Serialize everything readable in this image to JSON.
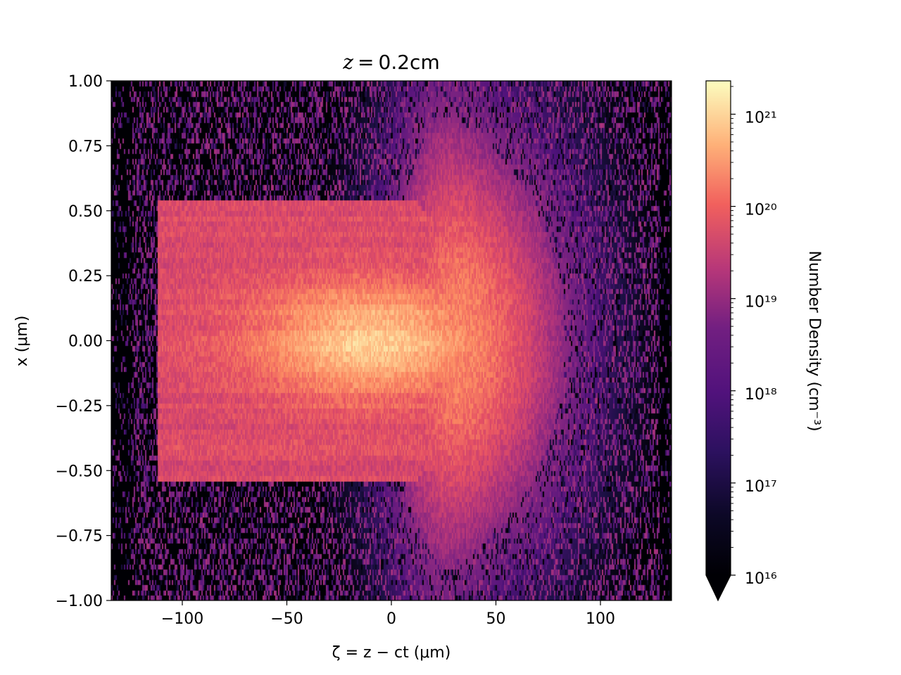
{
  "chart_data": {
    "type": "heatmap",
    "title_prefix": "z",
    "title_value": "0.2cm",
    "xlabel": "ζ = z − ct (μm)",
    "ylabel": "x (μm)",
    "xlim": [
      -134,
      134
    ],
    "ylim": [
      -1.0,
      1.0
    ],
    "xticks": [
      -100,
      -50,
      0,
      50,
      100
    ],
    "xtick_labels": [
      "−100",
      "−50",
      "0",
      "50",
      "100"
    ],
    "yticks": [
      1.0,
      0.75,
      0.5,
      0.25,
      0.0,
      -0.25,
      -0.5,
      -0.75,
      -1.0
    ],
    "ytick_labels": [
      "1.00",
      "0.75",
      "0.50",
      "0.25",
      "0.00",
      "−0.25",
      "−0.50",
      "−0.75",
      "−1.00"
    ],
    "colormap": "magma",
    "colorbar": {
      "label": "Number Density (cm⁻³)",
      "scale": "log",
      "range": [
        1e+16,
        2.3e+21
      ],
      "ticks": [
        16,
        17,
        18,
        19,
        20,
        21
      ],
      "tick_labels": [
        "10¹⁶",
        "10¹⁷",
        "10¹⁸",
        "10¹⁹",
        "10²⁰",
        "10²¹"
      ],
      "extend": "min"
    },
    "peak_density_log10": 20.9,
    "peak_location": {
      "zeta_um": -5,
      "x_um": 0.0
    },
    "structure": "dense core for ζ between −110 and 45 μm with |x| < 0.55 μm, diffuse halo spanning full x range for ζ between −20 and 120 μm, low density speckle elsewhere"
  }
}
